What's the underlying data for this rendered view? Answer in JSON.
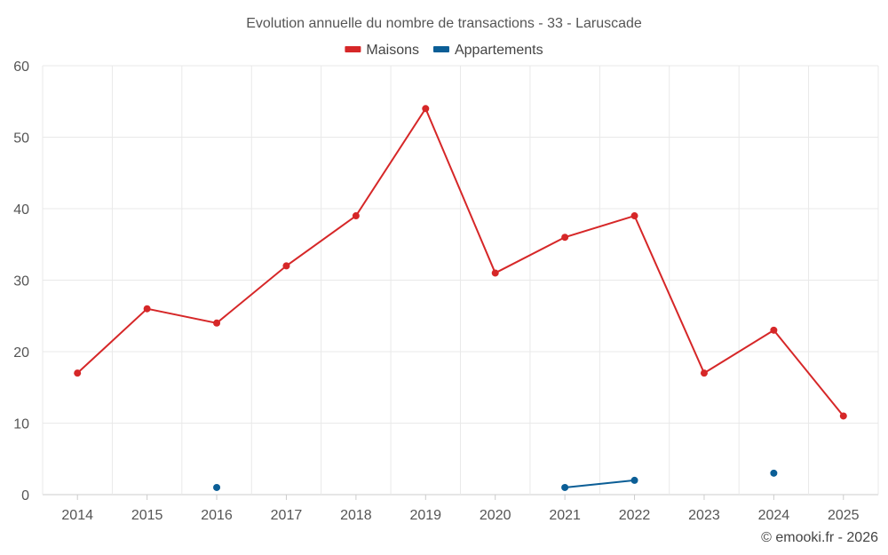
{
  "chart_data": {
    "type": "line",
    "title": "Evolution annuelle du nombre de transactions - 33 - Laruscade",
    "categories": [
      "2014",
      "2015",
      "2016",
      "2017",
      "2018",
      "2019",
      "2020",
      "2021",
      "2022",
      "2023",
      "2024",
      "2025"
    ],
    "ylim": [
      0,
      60
    ],
    "yticks": [
      0,
      10,
      20,
      30,
      40,
      50,
      60
    ],
    "grid": true,
    "legend_position": "top-center",
    "series": [
      {
        "name": "Maisons",
        "color": "#d62728",
        "values": [
          17,
          26,
          24,
          32,
          39,
          54,
          31,
          36,
          39,
          17,
          23,
          11
        ]
      },
      {
        "name": "Appartements",
        "color": "#0b5e96",
        "values": [
          null,
          null,
          1,
          null,
          null,
          null,
          null,
          1,
          2,
          null,
          3,
          null
        ]
      }
    ],
    "xlabel": "",
    "ylabel": ""
  },
  "credit": "© emooki.fr - 2026"
}
